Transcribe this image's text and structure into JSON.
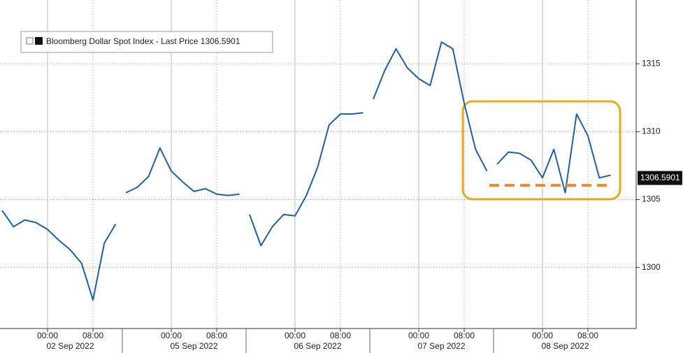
{
  "chart_data": {
    "type": "line",
    "legend": "Bloomberg Dollar Spot Index - Last Price 1306.5901",
    "color": "#1f5fa8",
    "grid": true,
    "categories": [
      null,
      null,
      null,
      null,
      "00:00",
      null,
      null,
      null,
      "08:00",
      null,
      null,
      null,
      null,
      null,
      null,
      "00:00",
      null,
      null,
      null,
      "08:00",
      null,
      null,
      null,
      null,
      null,
      null,
      "00:00",
      null,
      null,
      null,
      "08:00",
      null,
      null,
      null,
      null,
      null,
      null,
      "00:00",
      null,
      null,
      null,
      "08:00",
      null,
      null,
      null,
      null,
      null,
      null,
      "00:00",
      null,
      null,
      null,
      "08:00",
      null,
      null
    ],
    "date_labels": [
      "02 Sep 2022",
      "05 Sep 2022",
      "06 Sep 2022",
      "07 Sep 2022",
      "08 Sep 2022"
    ],
    "values": [
      1304.2,
      1303.0,
      1303.5,
      1303.3,
      1302.8,
      1302.0,
      1301.3,
      1300.3,
      1297.6,
      1301.8,
      1303.2,
      1305.5,
      1305.9,
      1306.7,
      1308.8,
      1307.1,
      1306.3,
      1305.6,
      1305.8,
      1305.4,
      1305.3,
      1305.4,
      1303.9,
      1301.6,
      1303.0,
      1303.9,
      1303.8,
      1305.3,
      1307.4,
      1310.5,
      1311.3,
      1311.3,
      1311.4,
      1312.4,
      1314.5,
      1316.1,
      1314.7,
      1313.9,
      1313.4,
      1316.6,
      1316.1,
      1312.1,
      1308.7,
      1307.1,
      1307.6,
      1308.5,
      1308.4,
      1307.9,
      1306.6,
      1308.7,
      1305.5,
      1311.3,
      1309.7,
      1306.6,
      1306.8
    ],
    "ylim": [
      1295.5,
      1319.7
    ],
    "yticks": [
      1300,
      1305,
      1310,
      1315
    ],
    "last_price": {
      "value": 1306.5901,
      "label": "1306.5901"
    },
    "support_level": 1306.05,
    "support_color": "#f0892a"
  }
}
